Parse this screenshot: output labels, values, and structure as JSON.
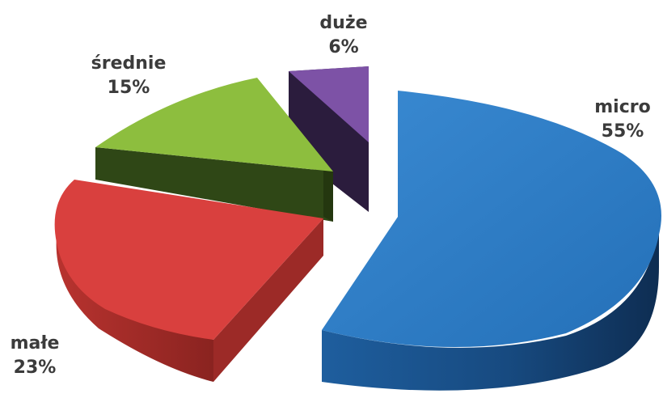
{
  "chart_data": {
    "type": "pie",
    "style": "3d-exploded",
    "slices": [
      {
        "label": "micro",
        "pct_label": "55%",
        "value": 55,
        "color": "#2a79c4"
      },
      {
        "label": "małe",
        "pct_label": "23%",
        "value": 23,
        "color": "#d9403e"
      },
      {
        "label": "średnie",
        "pct_label": "15%",
        "value": 15,
        "color": "#8dbe3e"
      },
      {
        "label": "duże",
        "pct_label": "6%",
        "value": 6,
        "color": "#7d52a6"
      }
    ]
  }
}
